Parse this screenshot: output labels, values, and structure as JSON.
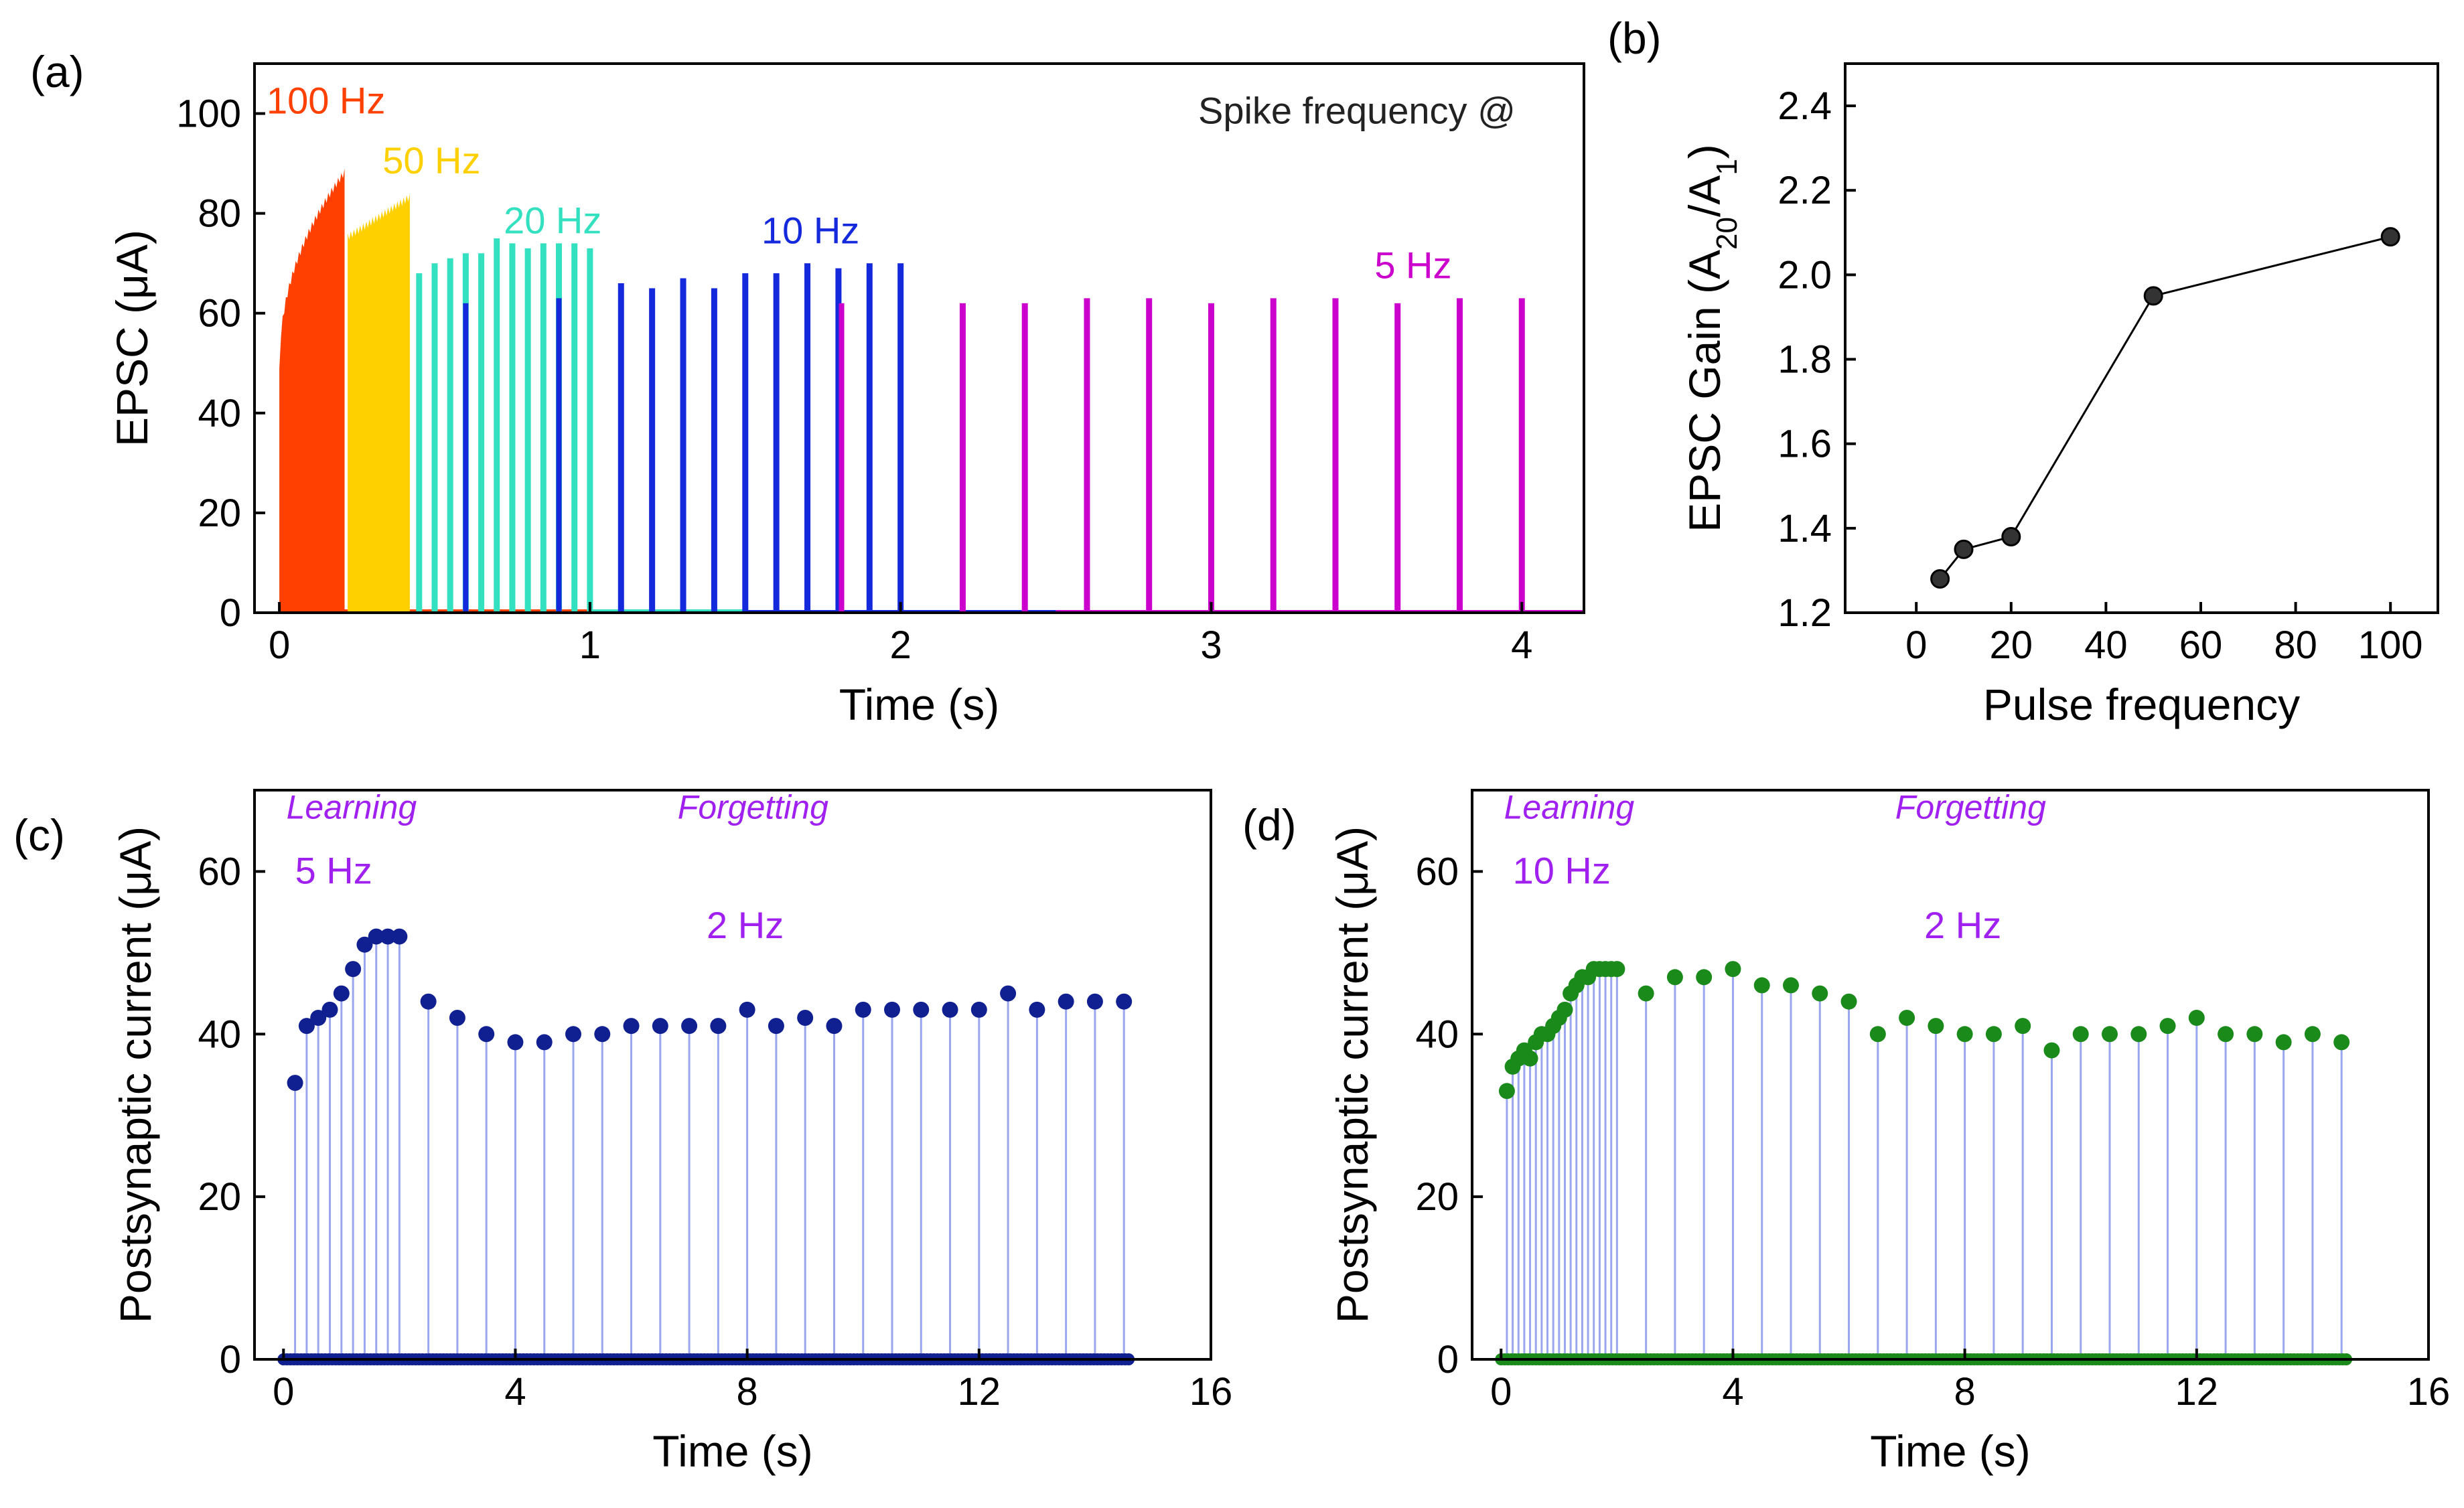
{
  "chart_data": [
    {
      "panel": "(a)",
      "type": "line",
      "title": "",
      "xlabel": "Time (s)",
      "ylabel": "EPSC (μA)",
      "xlim": [
        -0.08,
        4.2
      ],
      "ylim": [
        0,
        110
      ],
      "xticks": [
        0,
        1,
        2,
        3,
        4
      ],
      "yticks": [
        0,
        20,
        40,
        60,
        80,
        100
      ],
      "annotations": {
        "header": "Spike frequency @"
      },
      "series": [
        {
          "name": "100 Hz",
          "label": "100 Hz",
          "color": "#ff4000",
          "kind": "filled",
          "start": 0.0,
          "end": 0.21,
          "amp_start": 49,
          "amp_end": 89,
          "label_x": 0.15,
          "label_y": 100
        },
        {
          "name": "50 Hz",
          "label": "50 Hz",
          "color": "#ffd000",
          "kind": "filled",
          "start": 0.22,
          "end": 0.42,
          "amp_start": 76,
          "amp_end": 84,
          "label_x": 0.49,
          "label_y": 88
        },
        {
          "name": "20 Hz",
          "label": "20 Hz",
          "color": "#33e0c0",
          "times": [
            0.45,
            0.5,
            0.55,
            0.6,
            0.65,
            0.7,
            0.75,
            0.8,
            0.85,
            0.9,
            0.95,
            1.0
          ],
          "values": [
            68,
            70,
            71,
            72,
            72,
            75,
            74,
            73,
            74,
            74,
            74,
            73
          ],
          "label_x": 0.88,
          "label_y": 76
        },
        {
          "name": "10 Hz",
          "label": "10 Hz",
          "color": "#1428dc",
          "times": [
            1.1,
            1.2,
            1.3,
            1.4,
            1.5,
            1.6,
            1.7,
            1.8,
            1.9,
            2.0
          ],
          "values": [
            66,
            65,
            67,
            65,
            68,
            68,
            70,
            69,
            70,
            70
          ],
          "label_x": 1.71,
          "label_y": 74
        },
        {
          "name": "5 Hz",
          "label": "5 Hz",
          "color": "#cc00cc",
          "times": [
            2.2,
            2.4,
            2.6,
            2.8,
            3.0,
            3.2,
            3.4,
            3.6,
            3.8,
            4.0
          ],
          "values": [
            62,
            62,
            63,
            63,
            62,
            63,
            63,
            62,
            63,
            63
          ],
          "label_x": 3.65,
          "label_y": 67
        }
      ],
      "extra_spikes": [
        {
          "t": 0.6,
          "v": 62,
          "color": "#1428dc"
        },
        {
          "t": 0.9,
          "v": 63,
          "color": "#1428dc"
        },
        {
          "t": 1.81,
          "v": 62,
          "color": "#cc00cc"
        }
      ]
    },
    {
      "panel": "(b)",
      "type": "line",
      "xlabel": "Pulse frequency",
      "ylabel": "EPSC Gain (A20/A1)",
      "ylabel_parts": {
        "main": "EPSC Gain (A",
        "sub1": "20",
        "mid": "/A",
        "sub2": "1",
        "end": ")"
      },
      "xlim": [
        -15,
        110
      ],
      "ylim": [
        1.2,
        2.5
      ],
      "xticks": [
        0,
        20,
        40,
        60,
        80,
        100
      ],
      "yticks": [
        1.2,
        1.4,
        1.6,
        1.8,
        2.0,
        2.2,
        2.4
      ],
      "x": [
        5,
        10,
        20,
        50,
        100
      ],
      "y": [
        1.28,
        1.35,
        1.38,
        1.95,
        2.09
      ]
    },
    {
      "panel": "(c)",
      "type": "scatter",
      "xlabel": "Time (s)",
      "ylabel": "Postsynaptic current (μA)",
      "xlim": [
        -0.5,
        16
      ],
      "ylim": [
        0,
        70
      ],
      "xticks": [
        0,
        4,
        8,
        12,
        16
      ],
      "yticks": [
        0,
        20,
        40,
        60
      ],
      "color": "#102090",
      "annotations": {
        "learning": "Learning",
        "forgetting": "Forgetting",
        "learn_freq": "5 Hz",
        "forget_freq": "2 Hz"
      },
      "x": [
        0.2,
        0.4,
        0.6,
        0.8,
        1.0,
        1.2,
        1.4,
        1.6,
        1.8,
        2.0,
        2.5,
        3.0,
        3.5,
        4.0,
        4.5,
        5.0,
        5.5,
        6.0,
        6.5,
        7.0,
        7.5,
        8.0,
        8.5,
        9.0,
        9.5,
        10.0,
        10.5,
        11.0,
        11.5,
        12.0,
        12.5,
        13.0,
        13.5,
        14.0,
        14.5
      ],
      "y": [
        34,
        41,
        42,
        43,
        45,
        48,
        51,
        52,
        52,
        52,
        44,
        42,
        40,
        39,
        39,
        40,
        40,
        41,
        41,
        41,
        41,
        43,
        41,
        42,
        41,
        43,
        43,
        43,
        43,
        43,
        45,
        43,
        44,
        44,
        44
      ]
    },
    {
      "panel": "(d)",
      "type": "scatter",
      "xlabel": "Time (s)",
      "ylabel": "Postsynaptic current (μA)",
      "xlim": [
        -0.5,
        16
      ],
      "ylim": [
        0,
        70
      ],
      "xticks": [
        0,
        4,
        8,
        12,
        16
      ],
      "yticks": [
        0,
        20,
        40,
        60
      ],
      "color": "#1a8a1a",
      "annotations": {
        "learning": "Learning",
        "forgetting": "Forgetting",
        "learn_freq": "10 Hz",
        "forget_freq": "2 Hz"
      },
      "x": [
        0.1,
        0.2,
        0.3,
        0.4,
        0.5,
        0.6,
        0.7,
        0.8,
        0.9,
        1.0,
        1.1,
        1.2,
        1.3,
        1.4,
        1.5,
        1.6,
        1.7,
        1.8,
        1.9,
        2.0,
        2.5,
        3.0,
        3.5,
        4.0,
        4.5,
        5.0,
        5.5,
        6.0,
        6.5,
        7.0,
        7.5,
        8.0,
        8.5,
        9.0,
        9.5,
        10.0,
        10.5,
        11.0,
        11.5,
        12.0,
        12.5,
        13.0,
        13.5,
        14.0,
        14.5
      ],
      "y": [
        33,
        36,
        37,
        38,
        37,
        39,
        40,
        40,
        41,
        42,
        43,
        45,
        46,
        47,
        47,
        48,
        48,
        48,
        48,
        48,
        45,
        47,
        47,
        48,
        46,
        46,
        45,
        44,
        40,
        42,
        41,
        40,
        40,
        41,
        38,
        40,
        40,
        40,
        41,
        42,
        40,
        40,
        39,
        40,
        39
      ]
    }
  ],
  "panel_labels": [
    "(a)",
    "(b)",
    "(c)",
    "(d)"
  ]
}
